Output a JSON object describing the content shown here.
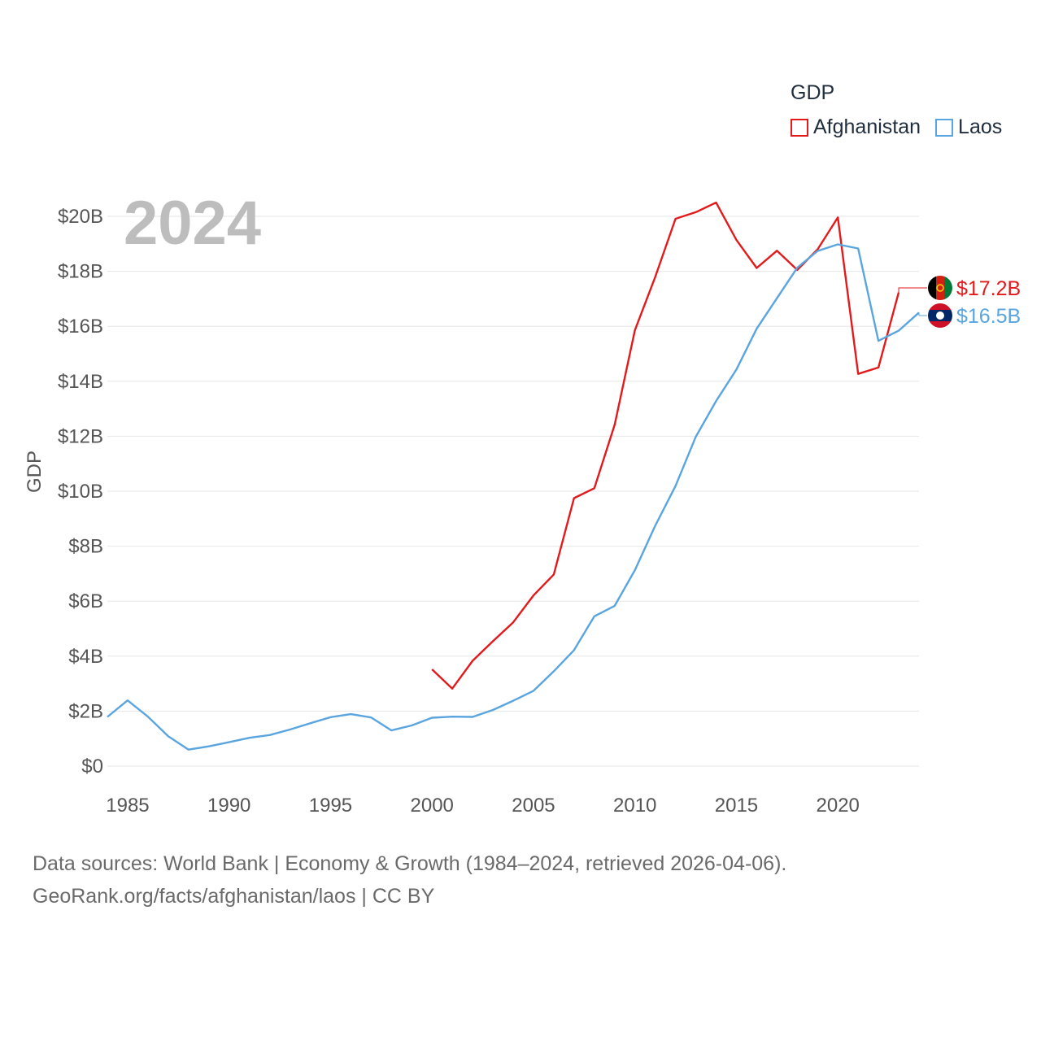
{
  "legend": {
    "title": "GDP",
    "items": [
      {
        "name": "Afghanistan",
        "color": "#e31a1c"
      },
      {
        "name": "Laos",
        "color": "#5aa5e0"
      }
    ]
  },
  "footer": {
    "line1": "Data sources: World Bank | Economy & Growth (1984–2024, retrieved 2026-04-06).",
    "line2": "GeoRank.org/facts/afghanistan/laos | CC BY"
  },
  "chart_data": {
    "type": "line",
    "title": "",
    "year_label": "2024",
    "ylabel": "GDP",
    "xlabel": "",
    "xlim": [
      1984,
      2024
    ],
    "ylim": [
      0,
      21
    ],
    "x_ticks": [
      1985,
      1990,
      1995,
      2000,
      2005,
      2010,
      2015,
      2020
    ],
    "x_tick_labels": [
      "1985",
      "1990",
      "1995",
      "2000",
      "2005",
      "2010",
      "2015",
      "2020"
    ],
    "y_ticks": [
      0,
      2,
      4,
      6,
      8,
      10,
      12,
      14,
      16,
      18,
      20
    ],
    "y_tick_labels": [
      "$0",
      "$2B",
      "$4B",
      "$6B",
      "$8B",
      "$10B",
      "$12B",
      "$14B",
      "$16B",
      "$18B",
      "$20B"
    ],
    "grid": true,
    "series": [
      {
        "name": "Afghanistan",
        "color": "#e31a1c",
        "end_label": "$17.2B",
        "points": [
          [
            2000,
            3.52
          ],
          [
            2001,
            2.82
          ],
          [
            2002,
            3.83
          ],
          [
            2003,
            4.54
          ],
          [
            2004,
            5.23
          ],
          [
            2005,
            6.21
          ],
          [
            2006,
            6.97
          ],
          [
            2007,
            9.75
          ],
          [
            2008,
            10.11
          ],
          [
            2009,
            12.42
          ],
          [
            2010,
            15.86
          ],
          [
            2011,
            17.8
          ],
          [
            2012,
            19.91
          ],
          [
            2013,
            20.15
          ],
          [
            2014,
            20.5
          ],
          [
            2015,
            19.14
          ],
          [
            2016,
            18.12
          ],
          [
            2017,
            18.75
          ],
          [
            2018,
            18.05
          ],
          [
            2019,
            18.8
          ],
          [
            2020,
            19.96
          ],
          [
            2021,
            14.27
          ],
          [
            2022,
            14.5
          ],
          [
            2023,
            17.23
          ]
        ]
      },
      {
        "name": "Laos",
        "color": "#5aa5e0",
        "end_label": "$16.5B",
        "points": [
          [
            1984,
            1.79
          ],
          [
            1985,
            2.39
          ],
          [
            1986,
            1.8
          ],
          [
            1987,
            1.09
          ],
          [
            1988,
            0.6
          ],
          [
            1989,
            0.72
          ],
          [
            1990,
            0.87
          ],
          [
            1991,
            1.03
          ],
          [
            1992,
            1.13
          ],
          [
            1993,
            1.33
          ],
          [
            1994,
            1.56
          ],
          [
            1995,
            1.78
          ],
          [
            1996,
            1.89
          ],
          [
            1997,
            1.77
          ],
          [
            1998,
            1.3
          ],
          [
            1999,
            1.48
          ],
          [
            2000,
            1.76
          ],
          [
            2001,
            1.8
          ],
          [
            2002,
            1.79
          ],
          [
            2003,
            2.04
          ],
          [
            2004,
            2.38
          ],
          [
            2005,
            2.74
          ],
          [
            2006,
            3.45
          ],
          [
            2007,
            4.22
          ],
          [
            2008,
            5.45
          ],
          [
            2009,
            5.83
          ],
          [
            2010,
            7.13
          ],
          [
            2011,
            8.75
          ],
          [
            2012,
            10.19
          ],
          [
            2013,
            11.98
          ],
          [
            2014,
            13.28
          ],
          [
            2015,
            14.43
          ],
          [
            2016,
            15.91
          ],
          [
            2017,
            17.02
          ],
          [
            2018,
            18.13
          ],
          [
            2019,
            18.74
          ],
          [
            2020,
            18.98
          ],
          [
            2021,
            18.83
          ],
          [
            2022,
            15.47
          ],
          [
            2023,
            15.84
          ],
          [
            2024,
            16.5
          ]
        ]
      }
    ]
  }
}
